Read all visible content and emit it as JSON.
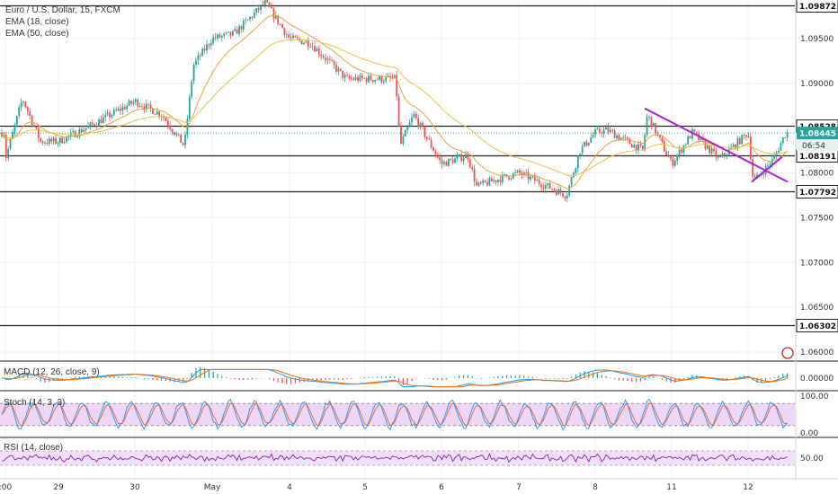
{
  "header": {
    "symbol": "Euro / U.S. Dollar, 15, FXCM",
    "ema1": "EMA (18, close)",
    "ema2": "EMA (50, close)"
  },
  "colors": {
    "up": "#26a69a",
    "down": "#ef5350",
    "ema_fast": "#e9a23b",
    "ema_slow": "#e8c04a",
    "trendline": "#b220d6",
    "macd": "#2196f3",
    "macd_signal": "#ff6d00",
    "stoch_k": "#2196f3",
    "stoch_d": "#e8642a",
    "rsi": "#8e24aa",
    "band_fill": "#e8ccf5",
    "last_price": "#26a69a"
  },
  "chart_data": {
    "type": "candlestick",
    "price_axis_ticks": [
      "1.09500",
      "1.09000",
      "1.08000",
      "1.07500",
      "1.07000",
      "1.06500",
      "1.06000"
    ],
    "ylim": [
      1.0592,
      1.0993
    ],
    "horizontal_levels": [
      {
        "label": "1.09872",
        "value": 1.09872
      },
      {
        "label": "1.08528",
        "value": 1.08528
      },
      {
        "label": "1.08191",
        "value": 1.08191
      },
      {
        "label": "1.07792",
        "value": 1.07792
      },
      {
        "label": "1.06302",
        "value": 1.06302
      }
    ],
    "last_price": {
      "label": "1.08445",
      "value": 1.08445,
      "countdown": "06:54"
    },
    "x_labels": [
      ":00",
      "29",
      "30",
      "May",
      "4",
      "5",
      "6",
      "7",
      "8",
      "11",
      "12"
    ],
    "approx_closes": [
      {
        "x": ":00",
        "close": 1.0815
      },
      {
        "x": "29",
        "close": 1.0835
      },
      {
        "x": "30",
        "close": 1.088
      },
      {
        "x": "May",
        "close": 1.095
      },
      {
        "x": "4",
        "close": 1.095
      },
      {
        "x": "5",
        "close": 1.0905
      },
      {
        "x": "6",
        "close": 1.081
      },
      {
        "x": "7",
        "close": 1.08
      },
      {
        "x": "8",
        "close": 1.0845
      },
      {
        "x": "11",
        "close": 1.081
      },
      {
        "x": "12",
        "close": 1.0845
      }
    ],
    "trendlines": [
      {
        "from": {
          "x": "8",
          "price": 1.0872
        },
        "to": {
          "x": "12",
          "price": 1.0788
        }
      },
      {
        "from": {
          "x": "12",
          "price": 1.079
        },
        "to": {
          "x": "12",
          "price": 1.082
        }
      }
    ],
    "indicators": [
      {
        "name": "MACD",
        "label": "MACD (12, 26, close, 9)",
        "ticks": [
          "0.00000"
        ]
      },
      {
        "name": "Stoch",
        "label": "Stoch (14, 3, 3)",
        "ticks": [
          "100.00",
          "0.00"
        ],
        "band": [
          20,
          80
        ]
      },
      {
        "name": "RSI",
        "label": "RSI (14, close)",
        "ticks": [
          "50.00"
        ],
        "band": [
          30,
          70
        ]
      }
    ]
  }
}
